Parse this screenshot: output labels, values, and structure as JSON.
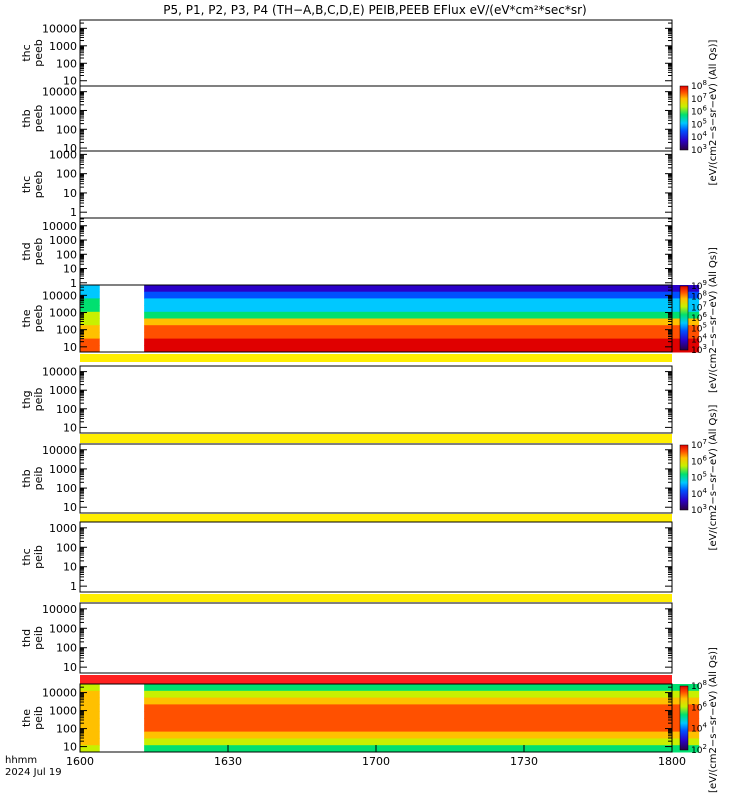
{
  "title": "P5, P1, P2, P3, P4 (TH−A,B,C,D,E) PEIB,PEEB EFlux eV/(eV*cm²*sec*sr)",
  "time_axis": {
    "label_line1": "hhmm",
    "label_line2": "2024 Jul 19",
    "ticks": [
      "1600",
      "1630",
      "1700",
      "1730",
      "1800"
    ],
    "tick_minutes": [
      0,
      30,
      60,
      90,
      120
    ],
    "range_minutes": [
      0,
      120
    ]
  },
  "colorbars": [
    {
      "label": "[eV/(cm2−s−sr−eV) (All Qs)]",
      "exponents": [
        3,
        4,
        5,
        6,
        7,
        8
      ]
    },
    {
      "label": "[eV/(cm2−s−sr−eV) (All Qs)]",
      "exponents": [
        3,
        4,
        5,
        6,
        7,
        8,
        9
      ]
    },
    {
      "label": "[eV/(cm2−s−sr−eV) (All Qs)]",
      "exponents": [
        3,
        4,
        5,
        6,
        7
      ]
    },
    {
      "label": "[eV/(cm2−s−sr−eV) (All Qs)]",
      "exponents": [
        2,
        4,
        6,
        8
      ]
    }
  ],
  "chart_data": [
    {
      "type": "heatmap",
      "label": [
        "thc",
        "peeb"
      ],
      "yticks": [
        "10000",
        "1000",
        "100",
        "10"
      ],
      "ylog": [
        5,
        10000,
        30000
      ],
      "data_interval": null
    },
    {
      "type": "heatmap",
      "label": [
        "thb",
        "peeb"
      ],
      "yticks": [
        "10000",
        "1000",
        "100",
        "10"
      ],
      "ylog": [
        7,
        10000,
        20000
      ],
      "data_interval": null
    },
    {
      "type": "heatmap",
      "label": [
        "thc",
        "peeb"
      ],
      "yticks": [
        "1000",
        "100",
        "10",
        "1"
      ],
      "ylog": [
        0.5,
        1000,
        1500
      ],
      "data_interval": null
    },
    {
      "type": "heatmap",
      "label": [
        "thd",
        "peeb"
      ],
      "yticks": [
        "10000",
        "1000",
        "100",
        "10",
        "1"
      ],
      "ylog": [
        0.7,
        10000,
        35000
      ],
      "data_interval": null
    },
    {
      "type": "heatmap",
      "label": [
        "the",
        "peeb"
      ],
      "yticks": [
        "10000",
        "1000",
        "100",
        "10"
      ],
      "ylog": [
        5,
        10000,
        40000
      ],
      "data_interval": [
        [
          0,
          4
        ],
        [
          13,
          125.5
        ]
      ],
      "flag_bar": "yellow"
    },
    {
      "type": "heatmap",
      "label": [
        "thg",
        "peib"
      ],
      "yticks": [
        "10000",
        "1000",
        "100",
        "10"
      ],
      "ylog": [
        5,
        10000,
        20000
      ],
      "data_interval": null,
      "flag_bar": "yellow"
    },
    {
      "type": "heatmap",
      "label": [
        "thb",
        "peib"
      ],
      "yticks": [
        "10000",
        "1000",
        "100",
        "10"
      ],
      "ylog": [
        5,
        10000,
        20000
      ],
      "data_interval": null,
      "flag_bar": "yellow"
    },
    {
      "type": "heatmap",
      "label": [
        "thc",
        "peib"
      ],
      "yticks": [
        "1000",
        "100",
        "10",
        "1"
      ],
      "ylog": [
        0.5,
        1000,
        2000
      ],
      "data_interval": null,
      "flag_bar": "yellow"
    },
    {
      "type": "heatmap",
      "label": [
        "thd",
        "peib"
      ],
      "yticks": [
        "10000",
        "1000",
        "100",
        "10"
      ],
      "ylog": [
        5,
        10000,
        20000
      ],
      "data_interval": null,
      "flag_bar": "red"
    },
    {
      "type": "heatmap",
      "label": [
        "the",
        "peib"
      ],
      "yticks": [
        "10000",
        "1000",
        "100",
        "10"
      ],
      "ylog": [
        5,
        10000,
        30000
      ],
      "data_interval": [
        [
          0,
          4
        ],
        [
          13,
          125.5
        ]
      ]
    }
  ]
}
